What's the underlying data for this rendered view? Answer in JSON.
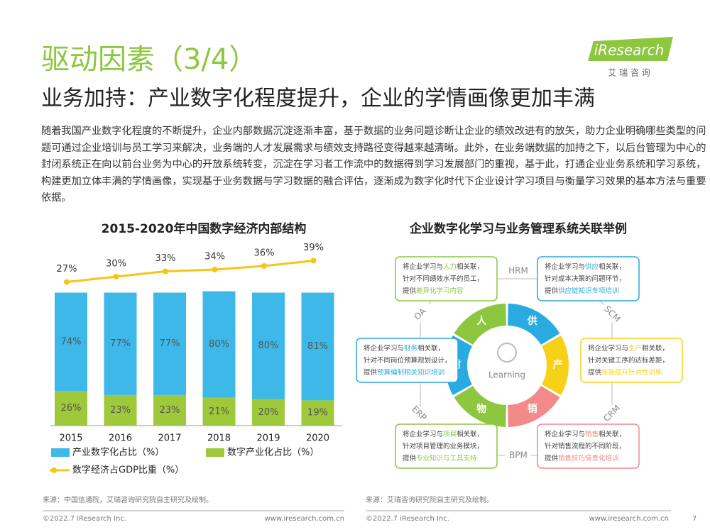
{
  "header": {
    "title": "驱动因素（3/4）",
    "subtitle": "业务加持：产业数字化程度提升，企业的学情画像更加丰满",
    "logo": "iResearch",
    "logo_sub": "艾 瑞 咨 询"
  },
  "body": "随着我国产业数字化程度的不断提升，企业内部数据沉淀逐渐丰富，基于数据的业务问题诊断让企业的绩效改进有的放矢，助力企业明确哪些类型的问题可通过企业培训与员工学习来解决，业务端的人才发展需求与绩效支持路径变得越来越清晰。此外，在业务端数据的加持之下，以后台管理为中心的封闭系统正在向以前台业务为中心的开放系统转变，沉淀在学习者工作流中的数据得到学习发展部门的重视，基于此，打通企业业务系统和学习系统，构建更加立体丰满的学情画像，实现基于业务数据与学习数据的融合评估，逐渐成为数字化时代下企业设计学习项目与衡量学习效果的基本方法与重要依据。",
  "chart_data": {
    "type": "bar",
    "stacked": true,
    "title": "2015-2020年中国数字经济内部结构",
    "categories": [
      "2015",
      "2016",
      "2017",
      "2018",
      "2019",
      "2020"
    ],
    "ylim": [
      0,
      128
    ],
    "y2lim": [
      -54,
      42
    ],
    "series": [
      {
        "name": "产业数字化占比（%）",
        "color": "#3db8e8",
        "values": [
          74,
          77,
          77,
          80,
          80,
          81
        ],
        "value_labels": [
          "74%",
          "77%",
          "77%",
          "80%",
          "80%",
          "81%"
        ]
      },
      {
        "name": "数字产业化占比（%）",
        "color": "#9ec93a",
        "values": [
          26,
          23,
          23,
          21,
          20,
          19
        ],
        "value_labels": [
          "26%",
          "23%",
          "23%",
          "21%",
          "20%",
          "19%"
        ]
      },
      {
        "name": "数字经济占GDP比重（%）",
        "type": "line",
        "axis": "y2",
        "color": "#f5c518",
        "values": [
          27,
          30,
          33,
          34,
          36,
          39
        ],
        "value_labels": [
          "27%",
          "30%",
          "33%",
          "34%",
          "36%",
          "39%"
        ]
      }
    ]
  },
  "diagram": {
    "title": "企业数字化学习与业务管理系统关联举例",
    "center": "Learning",
    "segments": [
      "人",
      "供",
      "产",
      "销",
      "物",
      "财"
    ],
    "systems": [
      "HRM",
      "SCM",
      "CRM",
      "BPM",
      "ERP",
      "OA"
    ],
    "boxes": [
      {
        "lines": [
          [
            "将企业学习与",
            "人力",
            "相关联，"
          ],
          [
            "针对不同绩效水平的员工，"
          ],
          [
            "提供",
            "差异化学习内容"
          ]
        ]
      },
      {
        "lines": [
          [
            "将企业学习与",
            "供应",
            "相关联，"
          ],
          [
            "针对成本决策的问题环节，"
          ],
          [
            "提供",
            "供应链知识专项培训"
          ]
        ]
      },
      {
        "lines": [
          [
            "将企业学习与",
            "生产",
            "相关联，"
          ],
          [
            "针对关键工序的达标差距，"
          ],
          [
            "提供",
            "技能提升针对性训练"
          ]
        ]
      },
      {
        "lines": [
          [
            "将企业学习与",
            "销售",
            "相关联，"
          ],
          [
            "针对销售流程的不同阶段，"
          ],
          [
            "提供",
            "销售技巧情景化培训"
          ]
        ]
      },
      {
        "lines": [
          [
            "将企业学习与",
            "项目",
            "相关联，"
          ],
          [
            "针对项目管理的业务模块，"
          ],
          [
            "提供",
            "专业知识与工具支持"
          ]
        ]
      },
      {
        "lines": [
          [
            "将企业学习与",
            "财务",
            "相关联，"
          ],
          [
            "针对不同岗位预算规划设计，"
          ],
          [
            "提供",
            "预算编制相关知识培训"
          ]
        ]
      }
    ]
  },
  "footer": {
    "source_left": "来源：中国信通院，艾瑞咨询研究院自主研究及绘制。",
    "source_right": "来源：艾瑞咨询研究院自主研究及绘制。",
    "copyright_left": "©2022.7 iResearch Inc.",
    "url_left": "www.iresearch.com.cn",
    "copyright_right": "©2022.7 iResearch Inc.",
    "url_right": "www.iresearch.com.cn",
    "page": "7"
  }
}
